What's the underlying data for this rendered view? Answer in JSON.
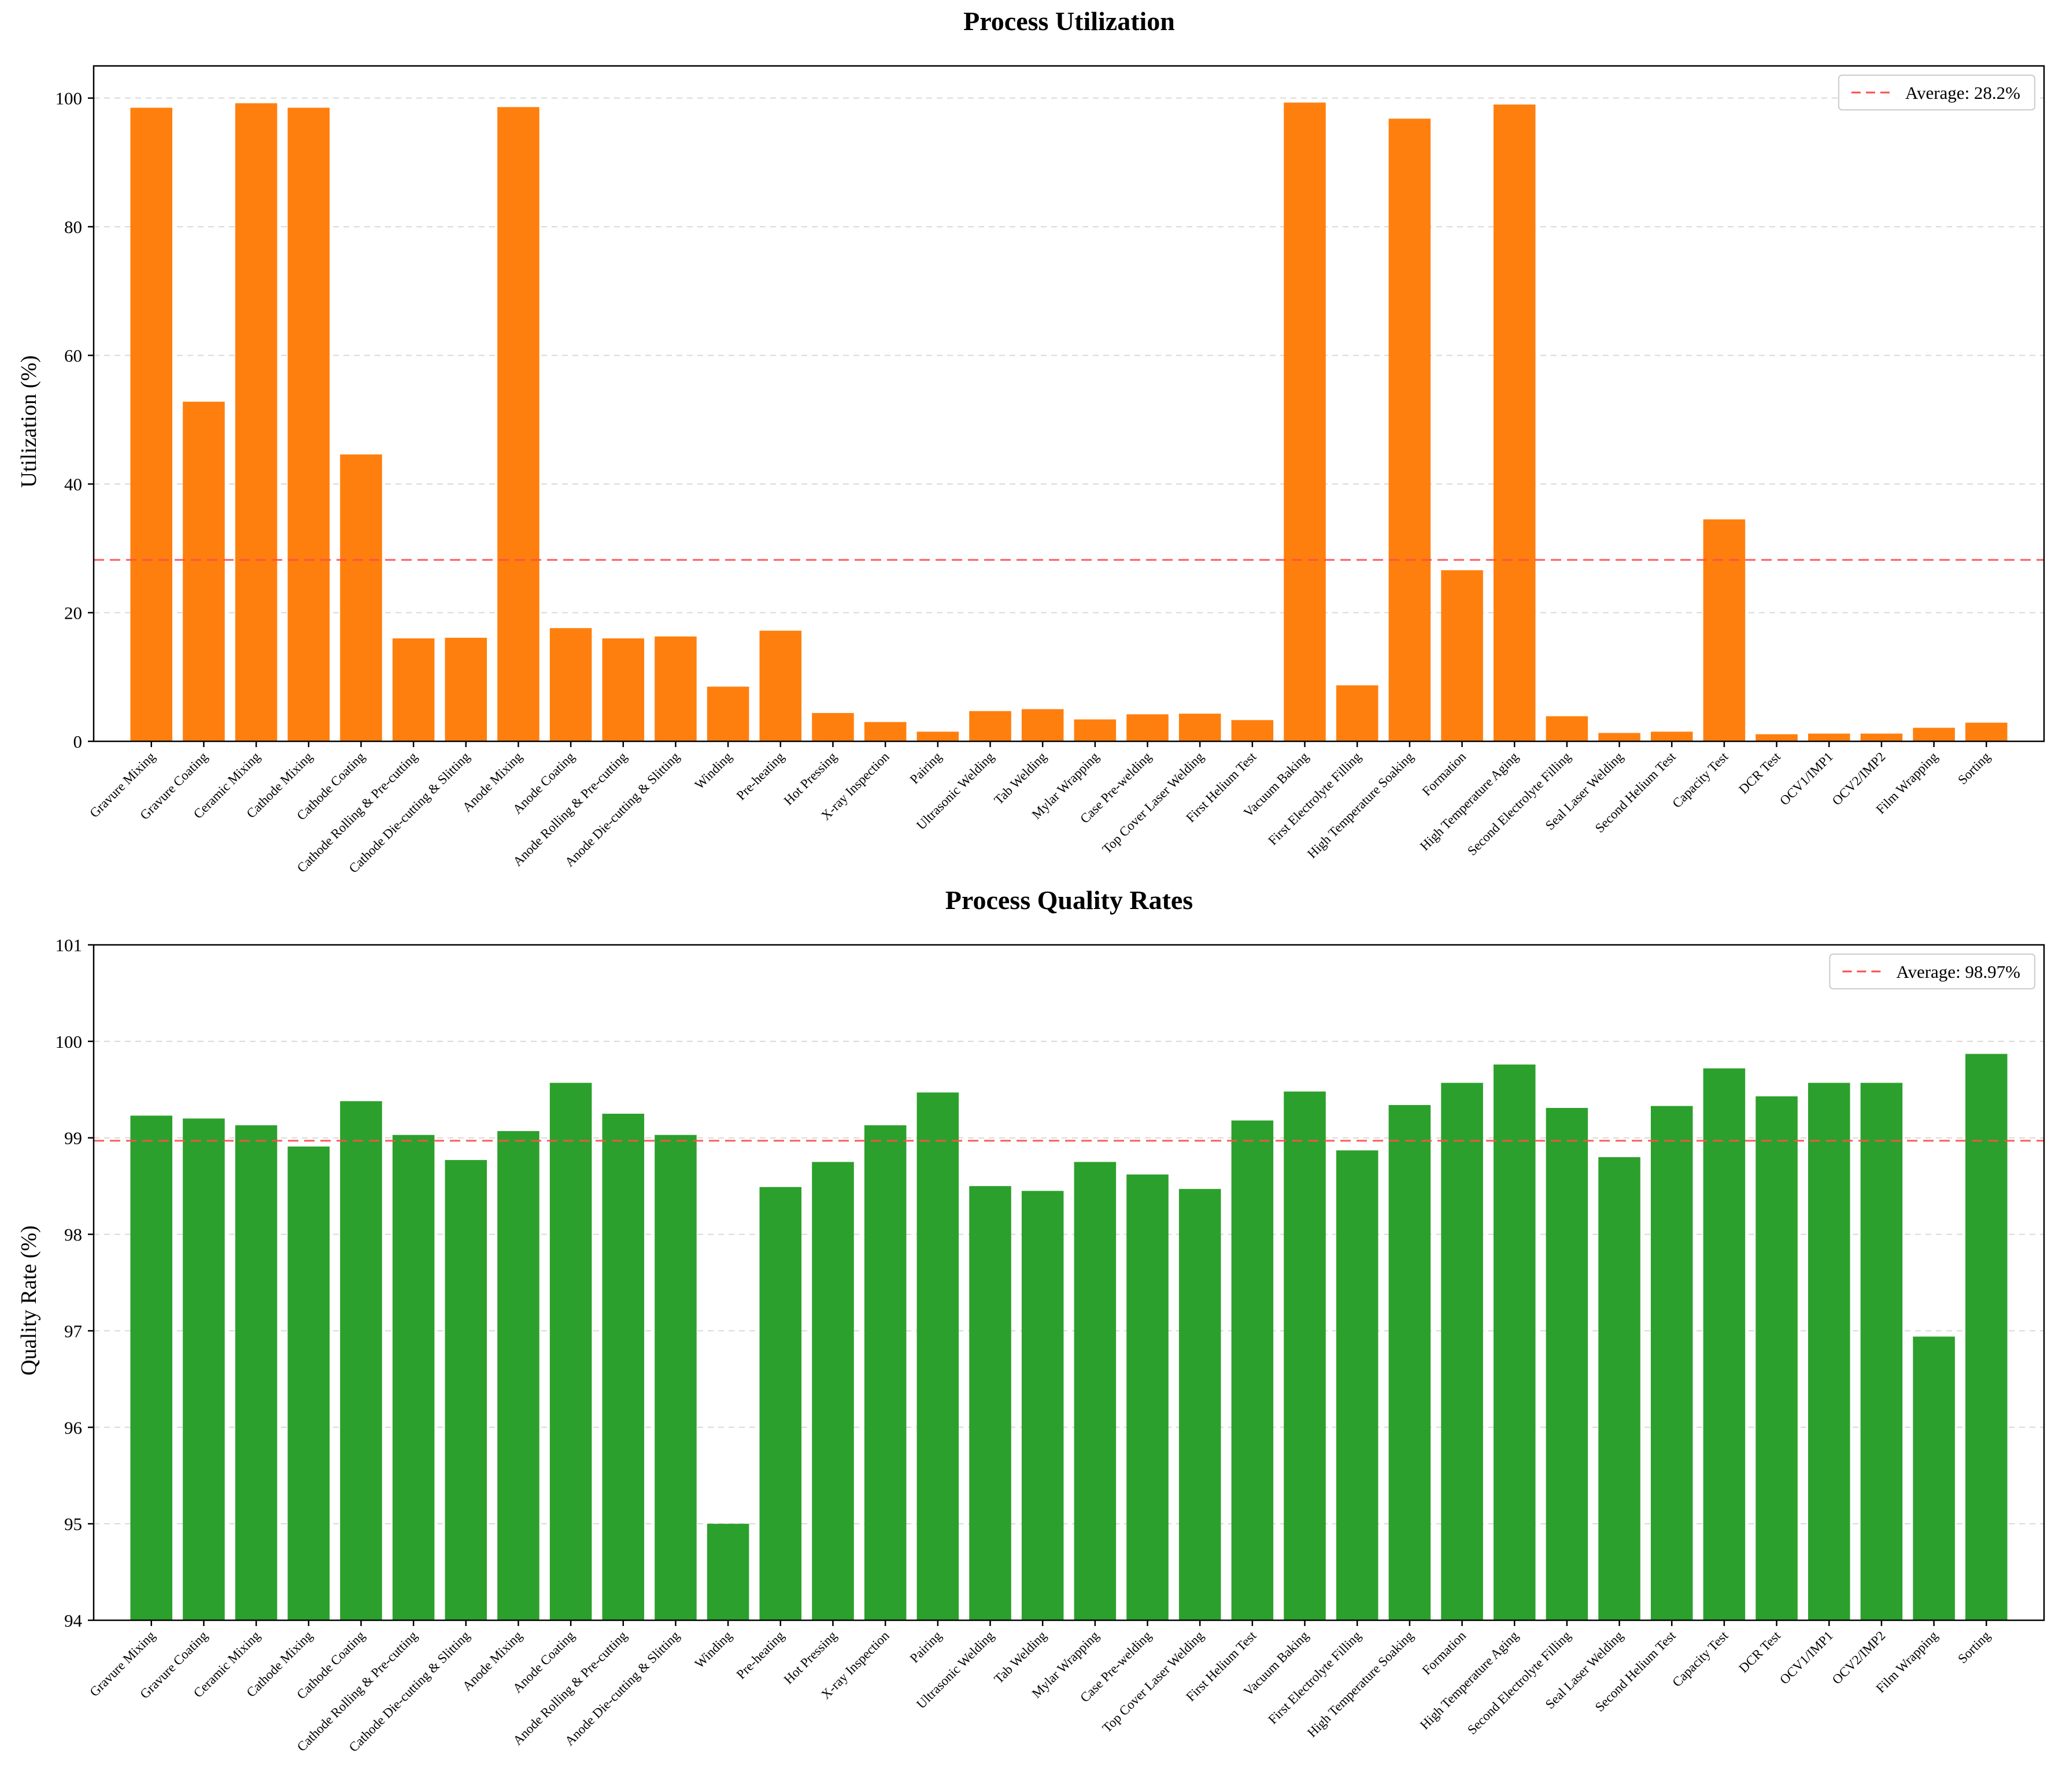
{
  "chart_data": [
    {
      "type": "bar",
      "title": "Process Utilization",
      "xlabel": "",
      "ylabel": "Utilization (%)",
      "ylim": [
        0,
        105
      ],
      "yticks": [
        0,
        20,
        40,
        60,
        80,
        100
      ],
      "ytick_labels": [
        "0",
        "20",
        "40",
        "60",
        "80",
        "100"
      ],
      "grid": "y-dashed",
      "color": "#ff7f0e",
      "categories": [
        "Gravure Mixing",
        "Gravure Coating",
        "Ceramic Mixing",
        "Cathode Mixing",
        "Cathode Coating",
        "Cathode Rolling & Pre-cutting",
        "Cathode Die-cutting & Slitting",
        "Anode Mixing",
        "Anode Coating",
        "Anode Rolling & Pre-cutting",
        "Anode Die-cutting & Slitting",
        "Winding",
        "Pre-heating",
        "Hot Pressing",
        "X-ray Inspection",
        "Pairing",
        "Ultrasonic Welding",
        "Tab Welding",
        "Mylar Wrapping",
        "Case Pre-welding",
        "Top Cover Laser Welding",
        "First Helium Test",
        "Vacuum Baking",
        "First Electrolyte Filling",
        "High Temperature Soaking",
        "Formation",
        "High Temperature Aging",
        "Second Electrolyte Filling",
        "Seal Laser Welding",
        "Second Helium Test",
        "Capacity Test",
        "DCR Test",
        "OCV1/IMP1",
        "OCV2/IMP2",
        "Film Wrapping",
        "Sorting"
      ],
      "values": [
        98.5,
        52.8,
        99.2,
        98.5,
        44.6,
        16.0,
        16.1,
        98.6,
        17.6,
        16.0,
        16.3,
        8.5,
        17.2,
        4.4,
        3.0,
        1.5,
        4.7,
        5.0,
        3.4,
        4.2,
        4.3,
        3.3,
        99.3,
        8.7,
        96.8,
        26.6,
        99.0,
        3.9,
        1.3,
        1.5,
        34.5,
        1.1,
        1.2,
        1.2,
        2.1,
        2.9
      ],
      "reference_line": {
        "value": 28.2,
        "style": "dashed",
        "color": "#ff4d4d"
      },
      "legend": {
        "label": "Average: 28.2%",
        "position": "top-right"
      }
    },
    {
      "type": "bar",
      "title": "Process Quality Rates",
      "xlabel": "",
      "ylabel": "Quality Rate (%)",
      "ylim": [
        94,
        101
      ],
      "yticks": [
        94,
        95,
        96,
        97,
        98,
        99,
        100,
        101
      ],
      "ytick_labels": [
        "94",
        "95",
        "96",
        "97",
        "98",
        "99",
        "100",
        "101"
      ],
      "grid": "y-dashed",
      "color": "#2ca02c",
      "categories": [
        "Gravure Mixing",
        "Gravure Coating",
        "Ceramic Mixing",
        "Cathode Mixing",
        "Cathode Coating",
        "Cathode Rolling & Pre-cutting",
        "Cathode Die-cutting & Slitting",
        "Anode Mixing",
        "Anode Coating",
        "Anode Rolling & Pre-cutting",
        "Anode Die-cutting & Slitting",
        "Winding",
        "Pre-heating",
        "Hot Pressing",
        "X-ray Inspection",
        "Pairing",
        "Ultrasonic Welding",
        "Tab Welding",
        "Mylar Wrapping",
        "Case Pre-welding",
        "Top Cover Laser Welding",
        "First Helium Test",
        "Vacuum Baking",
        "First Electrolyte Filling",
        "High Temperature Soaking",
        "Formation",
        "High Temperature Aging",
        "Second Electrolyte Filling",
        "Seal Laser Welding",
        "Second Helium Test",
        "Capacity Test",
        "DCR Test",
        "OCV1/IMP1",
        "OCV2/IMP2",
        "Film Wrapping",
        "Sorting"
      ],
      "values": [
        99.23,
        99.2,
        99.13,
        98.91,
        99.38,
        99.03,
        98.77,
        99.07,
        99.57,
        99.25,
        99.03,
        95.0,
        98.49,
        98.75,
        99.13,
        99.47,
        98.5,
        98.45,
        98.75,
        98.62,
        98.47,
        99.18,
        99.48,
        98.87,
        99.34,
        99.57,
        99.76,
        99.31,
        98.8,
        99.33,
        99.72,
        99.43,
        99.57,
        99.57,
        96.94,
        99.87
      ],
      "reference_line": {
        "value": 98.97,
        "style": "dashed",
        "color": "#ff4d4d"
      },
      "legend": {
        "label": "Average: 98.97%",
        "position": "top-right"
      }
    }
  ]
}
